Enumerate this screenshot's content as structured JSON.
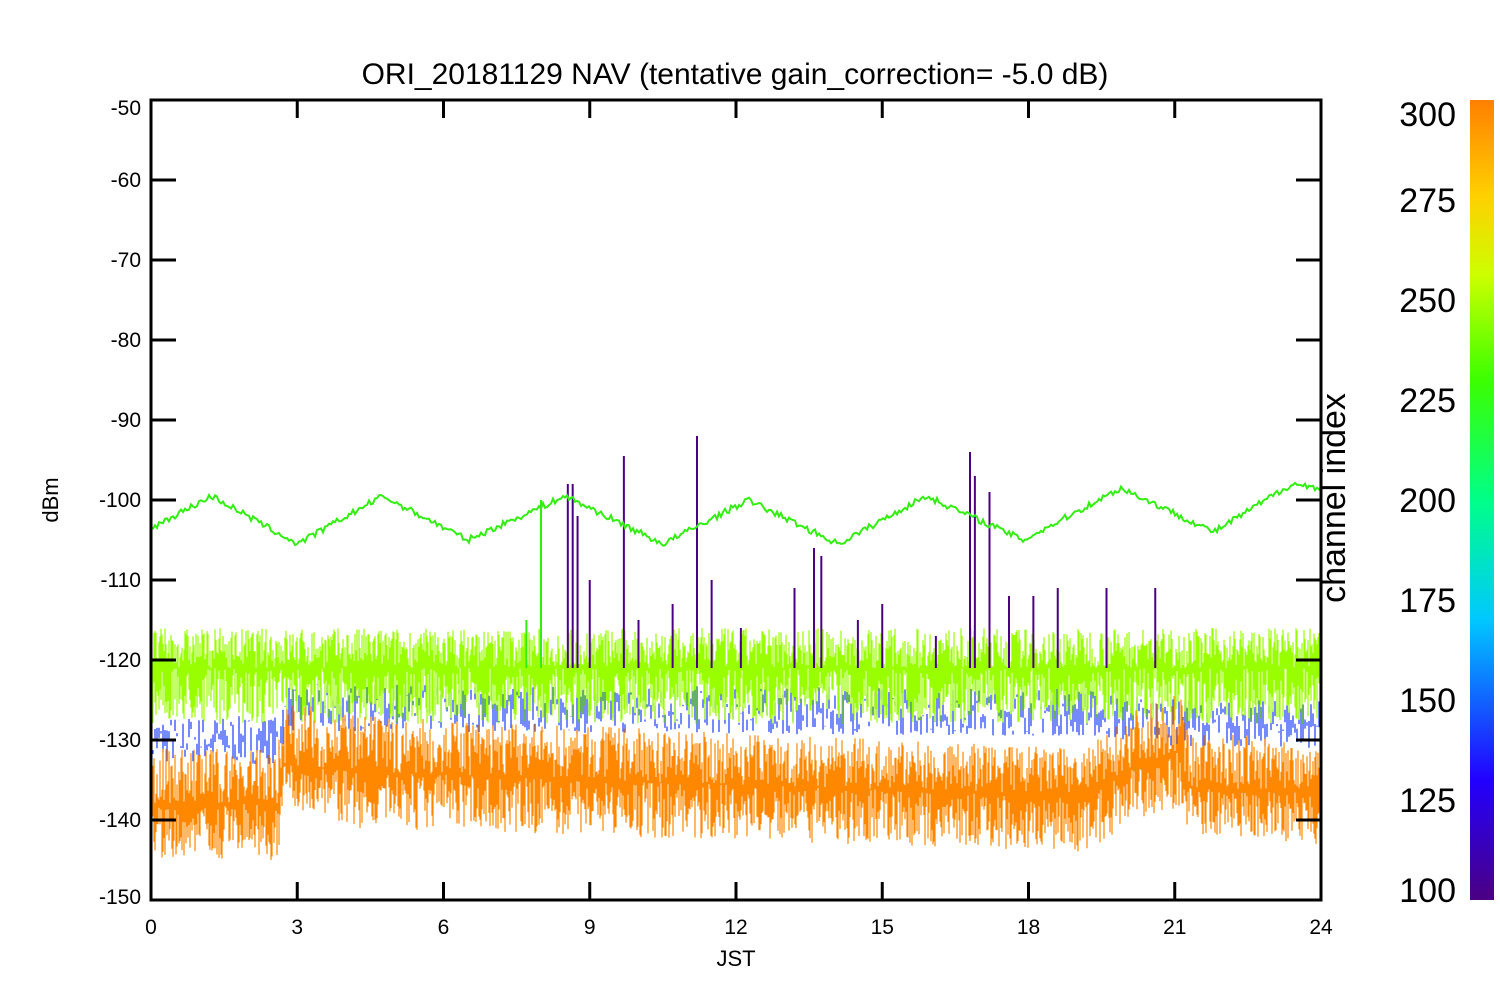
{
  "chart_data": {
    "type": "line",
    "title": "ORI_20181129 NAV (tentative gain_correction= -5.0 dB)",
    "xlabel": "JST",
    "ylabel": "dBm",
    "xlim": [
      0,
      24
    ],
    "ylim": [
      -150,
      -50
    ],
    "x_ticks": [
      0,
      3,
      6,
      9,
      12,
      15,
      18,
      21,
      24
    ],
    "y_ticks": [
      -50,
      -60,
      -70,
      -80,
      -90,
      -100,
      -110,
      -120,
      -130,
      -140,
      -150
    ],
    "colorbar": {
      "label": "channel index",
      "range": [
        100,
        300
      ],
      "ticks": [
        300,
        275,
        250,
        225,
        200,
        175,
        150,
        125,
        100
      ],
      "colors": [
        "#4b0082",
        "#2200ff",
        "#00c8ff",
        "#00ff88",
        "#3cff00",
        "#ccff00",
        "#ffd000",
        "#ff8000"
      ]
    },
    "series": [
      {
        "channel": 230,
        "color": "#33ee11",
        "x": [
          0,
          1.25,
          3,
          4.75,
          6.5,
          8.5,
          10.5,
          12.25,
          14.1,
          15.9,
          17.9,
          19.9,
          21.8,
          23.4,
          24
        ],
        "values": [
          -103.5,
          -99.5,
          -105.5,
          -99.5,
          -105,
          -99.5,
          -105.5,
          -100,
          -105.5,
          -99.5,
          -105,
          -98.5,
          -104,
          -98,
          -98.5
        ]
      },
      {
        "channel": 260,
        "color": "#99ff00",
        "x": [
          0,
          24
        ],
        "values": [
          -121,
          -121
        ],
        "spread": [
          -128,
          -116
        ]
      },
      {
        "channel": 290,
        "color": "#ff8800",
        "x": [
          0,
          2.6,
          2.7,
          4.2,
          19.2,
          20.2,
          21.1,
          21.3,
          24
        ],
        "values": [
          -138,
          -138,
          -133,
          -134,
          -137,
          -133,
          -131.5,
          -136,
          -136.5
        ],
        "spread_low": [
          -145,
          -145,
          -138,
          -141,
          -144,
          -140,
          -139,
          -142,
          -143
        ],
        "spread_high": [
          -131,
          -131,
          -125,
          -127,
          -131,
          -126,
          -124,
          -129,
          -130
        ]
      },
      {
        "channel": 150,
        "color": "#1a3cff",
        "x": [
          0,
          2.6,
          2.8,
          19,
          21.2,
          24
        ],
        "values": [
          -130,
          -130,
          -126,
          -126.5,
          -128,
          -128
        ]
      }
    ],
    "spikes": [
      {
        "x": 7.7,
        "peak": -115,
        "color": "#33ee11"
      },
      {
        "x": 8.0,
        "peak": -100,
        "color": "#33ee11"
      },
      {
        "x": 8.55,
        "peak": -98,
        "color": "#4b0082"
      },
      {
        "x": 8.65,
        "peak": -98,
        "color": "#4b0082"
      },
      {
        "x": 8.75,
        "peak": -102,
        "color": "#4b0082"
      },
      {
        "x": 9.0,
        "peak": -110,
        "color": "#4b0082"
      },
      {
        "x": 9.7,
        "peak": -94.5,
        "color": "#4b0082"
      },
      {
        "x": 10.0,
        "peak": -115,
        "color": "#4b0082"
      },
      {
        "x": 10.7,
        "peak": -113,
        "color": "#4b0082"
      },
      {
        "x": 11.2,
        "peak": -92,
        "color": "#4b0082"
      },
      {
        "x": 11.5,
        "peak": -110,
        "color": "#4b0082"
      },
      {
        "x": 12.1,
        "peak": -116,
        "color": "#4b0082"
      },
      {
        "x": 13.2,
        "peak": -111,
        "color": "#4b0082"
      },
      {
        "x": 13.6,
        "peak": -106,
        "color": "#4b0082"
      },
      {
        "x": 13.75,
        "peak": -107,
        "color": "#4b0082"
      },
      {
        "x": 14.5,
        "peak": -115,
        "color": "#4b0082"
      },
      {
        "x": 15.0,
        "peak": -113,
        "color": "#4b0082"
      },
      {
        "x": 16.1,
        "peak": -117,
        "color": "#4b0082"
      },
      {
        "x": 16.8,
        "peak": -94,
        "color": "#4b0082"
      },
      {
        "x": 16.9,
        "peak": -97,
        "color": "#4b0082"
      },
      {
        "x": 17.2,
        "peak": -99,
        "color": "#4b0082"
      },
      {
        "x": 17.6,
        "peak": -112,
        "color": "#4b0082"
      },
      {
        "x": 18.1,
        "peak": -112,
        "color": "#4b0082"
      },
      {
        "x": 18.6,
        "peak": -111,
        "color": "#4b0082"
      },
      {
        "x": 19.6,
        "peak": -111,
        "color": "#4b0082"
      },
      {
        "x": 20.6,
        "peak": -111,
        "color": "#4b0082"
      }
    ]
  }
}
